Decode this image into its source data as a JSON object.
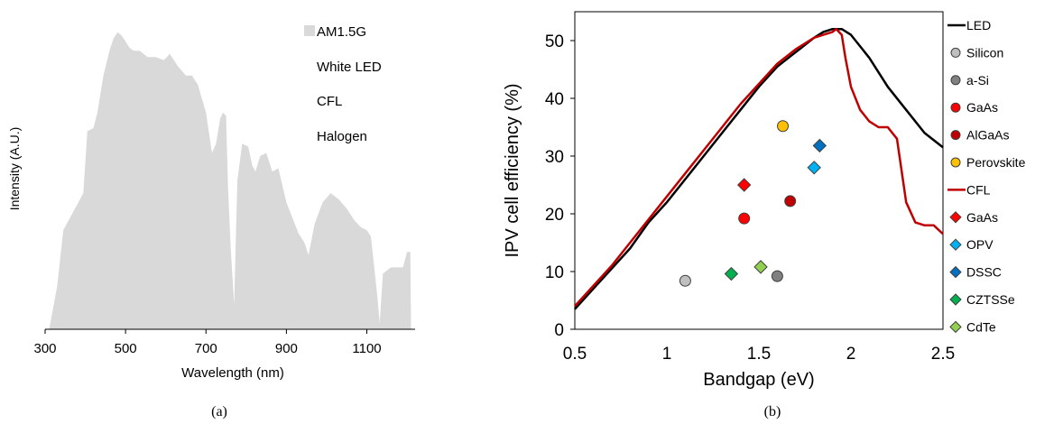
{
  "chart_data": [
    {
      "type": "area",
      "caption": "(a)",
      "xlabel": "Wavelength (nm)",
      "ylabel": "Intensity (A.U.)",
      "xlim": [
        300,
        1220
      ],
      "ylim": [
        0,
        1
      ],
      "xticks": [
        "300",
        "500",
        "700",
        "900",
        "1100"
      ],
      "grid": false,
      "legend_position": "top-right",
      "series": [
        {
          "name": "AM1.5G",
          "color": "#d9d9d9",
          "x": [
            310,
            330,
            345,
            370,
            395,
            405,
            420,
            430,
            445,
            460,
            470,
            480,
            490,
            500,
            510,
            520,
            535,
            555,
            575,
            595,
            610,
            630,
            650,
            665,
            680,
            700,
            715,
            725,
            735,
            742,
            750,
            755,
            762,
            770,
            778,
            790,
            805,
            815,
            823,
            835,
            850,
            865,
            880,
            900,
            915,
            930,
            945,
            955,
            970,
            990,
            1010,
            1030,
            1050,
            1070,
            1085,
            1100,
            1110,
            1125,
            1132,
            1140,
            1160,
            1175,
            1190,
            1200,
            1208,
            1210
          ],
          "values": [
            0.0,
            0.14,
            0.32,
            0.38,
            0.44,
            0.64,
            0.65,
            0.7,
            0.82,
            0.9,
            0.94,
            0.96,
            0.95,
            0.93,
            0.91,
            0.9,
            0.9,
            0.88,
            0.88,
            0.87,
            0.89,
            0.85,
            0.82,
            0.82,
            0.79,
            0.7,
            0.57,
            0.6,
            0.68,
            0.7,
            0.69,
            0.45,
            0.25,
            0.08,
            0.48,
            0.6,
            0.59,
            0.53,
            0.51,
            0.56,
            0.57,
            0.51,
            0.52,
            0.41,
            0.36,
            0.31,
            0.28,
            0.24,
            0.34,
            0.41,
            0.44,
            0.42,
            0.39,
            0.35,
            0.33,
            0.32,
            0.3,
            0.12,
            0.02,
            0.18,
            0.2,
            0.2,
            0.2,
            0.25,
            0.25,
            0.0
          ]
        },
        {
          "name": "White LED"
        },
        {
          "name": "CFL"
        },
        {
          "name": "Halogen"
        }
      ]
    },
    {
      "type": "line",
      "caption": "(b)",
      "xlabel": "Bandgap (eV)",
      "ylabel": "IPV cell efficiency (%)",
      "xlim": [
        0.5,
        2.5
      ],
      "ylim": [
        0,
        55
      ],
      "xticks": [
        "0.5",
        "1",
        "1.5",
        "2",
        "2.5"
      ],
      "yticks": [
        "0",
        "10",
        "20",
        "30",
        "40",
        "50"
      ],
      "grid": false,
      "legend_position": "right",
      "series": [
        {
          "name": "LED",
          "kind": "line",
          "color": "#000000",
          "x": [
            0.5,
            0.6,
            0.7,
            0.8,
            0.9,
            1.0,
            1.1,
            1.2,
            1.3,
            1.4,
            1.5,
            1.6,
            1.7,
            1.8,
            1.85,
            1.9,
            1.95,
            2.0,
            2.05,
            2.1,
            2.2,
            2.3,
            2.4,
            2.5
          ],
          "values": [
            3.5,
            7.0,
            10.5,
            14.0,
            18.5,
            22.0,
            26.0,
            30.0,
            34.0,
            38.0,
            42.0,
            45.5,
            48.0,
            50.5,
            51.5,
            52.0,
            52.0,
            51.0,
            49.0,
            47.0,
            42.0,
            38.0,
            34.0,
            31.5
          ]
        },
        {
          "name": "Silicon",
          "kind": "point",
          "marker": "circle",
          "color": "#bfbfbf",
          "x": [
            1.1
          ],
          "values": [
            8.4
          ]
        },
        {
          "name": "a-Si",
          "kind": "point",
          "marker": "circle",
          "color": "#808080",
          "x": [
            1.6
          ],
          "values": [
            9.2
          ]
        },
        {
          "name": "GaAs",
          "kind": "point",
          "marker": "circle",
          "color": "#ff0000",
          "x": [
            1.42
          ],
          "values": [
            19.2
          ]
        },
        {
          "name": "AlGaAs",
          "kind": "point",
          "marker": "circle",
          "color": "#c00000",
          "x": [
            1.67
          ],
          "values": [
            22.2
          ]
        },
        {
          "name": "Perovskite",
          "kind": "point",
          "marker": "circle",
          "color": "#ffc000",
          "x": [
            1.63
          ],
          "values": [
            35.2
          ]
        },
        {
          "name": "CFL",
          "kind": "line",
          "color": "#c00000",
          "x": [
            0.5,
            0.6,
            0.7,
            0.8,
            0.9,
            1.0,
            1.1,
            1.2,
            1.3,
            1.4,
            1.5,
            1.6,
            1.7,
            1.8,
            1.85,
            1.9,
            1.92,
            1.95,
            1.97,
            2.0,
            2.05,
            2.1,
            2.15,
            2.2,
            2.25,
            2.3,
            2.35,
            2.4,
            2.45,
            2.5
          ],
          "values": [
            4.0,
            7.5,
            11.0,
            15.0,
            19.0,
            23.0,
            27.0,
            31.0,
            35.0,
            39.0,
            42.5,
            46.0,
            48.5,
            50.5,
            51.0,
            51.5,
            52.0,
            51.0,
            47.0,
            42.0,
            38.0,
            36.0,
            35.0,
            35.0,
            33.0,
            22.0,
            18.5,
            18.0,
            18.0,
            16.5
          ]
        },
        {
          "name": "GaAs",
          "kind": "point",
          "marker": "diamond",
          "color": "#ff0000",
          "x": [
            1.42
          ],
          "values": [
            25.0
          ]
        },
        {
          "name": "OPV",
          "kind": "point",
          "marker": "diamond",
          "color": "#00b0f0",
          "x": [
            1.8
          ],
          "values": [
            28.0
          ]
        },
        {
          "name": "DSSC",
          "kind": "point",
          "marker": "diamond",
          "color": "#0070c0",
          "x": [
            1.83
          ],
          "values": [
            31.8
          ]
        },
        {
          "name": "CZTSSe",
          "kind": "point",
          "marker": "diamond",
          "color": "#00b050",
          "x": [
            1.35
          ],
          "values": [
            9.6
          ]
        },
        {
          "name": "CdTe",
          "kind": "point",
          "marker": "diamond",
          "color": "#92d050",
          "x": [
            1.51
          ],
          "values": [
            10.8
          ]
        }
      ]
    }
  ]
}
